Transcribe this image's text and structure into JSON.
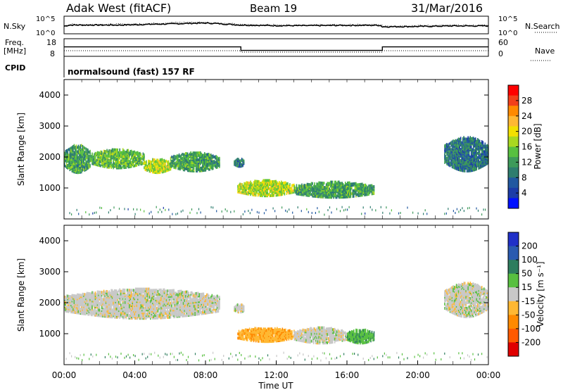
{
  "header": {
    "title": "Adak West (fitACF)",
    "beam": "Beam 19",
    "date": "31/Mar/2016"
  },
  "noise_panel": {
    "left_label": "N.Sky",
    "right_label": "N.Search",
    "left_ticks": [
      "10^5",
      "10^0"
    ],
    "right_ticks": [
      "10^5",
      "10^0"
    ]
  },
  "freq_panel": {
    "left_label_line1": "Freq.",
    "left_label_line2": "[MHz]",
    "left_ticks": [
      "18",
      "8"
    ],
    "right_label": "Nave",
    "right_ticks": [
      "60",
      "0"
    ]
  },
  "cpid": {
    "label": "CPID",
    "text": "normalsound (fast) 157 RF"
  },
  "xaxis": {
    "label": "Time UT",
    "ticks": [
      "00:00",
      "04:00",
      "08:00",
      "12:00",
      "16:00",
      "20:00",
      "00:00"
    ]
  },
  "power_colorbar": {
    "label": "Power [dB]",
    "ticks": [
      "28",
      "24",
      "20",
      "16",
      "12",
      "8",
      "4"
    ],
    "colors": [
      "#ff0000",
      "#f2401a",
      "#ff8a00",
      "#ffb833",
      "#f2e000",
      "#a8d820",
      "#58c040",
      "#3e9a5a",
      "#2e7d6e",
      "#2158a0",
      "#1c3ca8",
      "#0010ff"
    ]
  },
  "velocity_colorbar": {
    "label": "Velocity [m s⁻¹]",
    "ticks": [
      "200",
      "100",
      "50",
      "15",
      "-15",
      "-50",
      "-100",
      "-200"
    ],
    "colors": [
      "#2030c8",
      "#2a5ab0",
      "#2e7d5e",
      "#58c040",
      "#c8c8c8",
      "#ffb833",
      "#ff8a00",
      "#ff5a00",
      "#e00000"
    ]
  },
  "chart_data": [
    {
      "type": "line",
      "title": "Adak West (fitACF) Beam 19 31/Mar/2016",
      "panel": "noise",
      "xlabel": "Time UT",
      "x_hours": [
        0,
        0.3,
        1,
        3,
        4,
        5,
        6,
        7,
        8,
        8.5,
        10,
        12,
        14,
        16,
        17.9,
        18,
        20,
        22,
        24
      ],
      "series": [
        {
          "name": "N.Sky",
          "values_log10": [
            2.2,
            2.6,
            2.6,
            2.6,
            2.7,
            2.9,
            3.0,
            3.2,
            3.3,
            3.2,
            2.6,
            2.4,
            2.4,
            2.5,
            2.5,
            2.0,
            2.1,
            2.3,
            2.3
          ]
        },
        {
          "name": "N.Search",
          "values_log10": [
            2.4,
            2.8,
            2.8,
            2.9,
            3.0,
            3.2,
            3.4,
            3.6,
            3.6,
            3.4,
            2.8,
            2.6,
            2.6,
            2.7,
            2.7,
            2.3,
            2.4,
            2.5,
            2.5
          ]
        }
      ],
      "ylim_log10": [
        0,
        5
      ]
    },
    {
      "type": "line",
      "panel": "frequency",
      "xlabel": "Time UT",
      "series": [
        {
          "name": "Freq.",
          "x_hours": [
            0,
            10,
            10,
            18,
            18,
            24
          ],
          "values": [
            13.7,
            13.7,
            11.2,
            11.2,
            13.7,
            13.7
          ]
        },
        {
          "name": "Nave",
          "x_hours": [
            0,
            10,
            10,
            18,
            18,
            24
          ],
          "values": [
            18,
            18,
            12,
            12,
            18,
            18
          ]
        }
      ],
      "ylim_left": [
        8,
        18
      ],
      "ylim_right": [
        0,
        60
      ]
    },
    {
      "type": "heatmap",
      "panel": "power",
      "xlabel": "Time UT",
      "ylabel": "Slant Range [km]",
      "ylim": [
        0,
        4500
      ],
      "y_ticks": [
        1000,
        2000,
        3000,
        4000
      ],
      "regions": [
        {
          "x_start_h": 0,
          "x_end_h": 1.5,
          "range_low": 1450,
          "range_high": 2350,
          "power_dB": 12
        },
        {
          "x_start_h": 1.5,
          "x_end_h": 4.5,
          "range_low": 1600,
          "range_high": 2200,
          "power_dB": 14
        },
        {
          "x_start_h": 4.5,
          "x_end_h": 6.0,
          "range_low": 1450,
          "range_high": 1900,
          "power_dB": 18
        },
        {
          "x_start_h": 6.0,
          "x_end_h": 8.8,
          "range_low": 1500,
          "range_high": 2100,
          "power_dB": 12
        },
        {
          "x_start_h": 9.6,
          "x_end_h": 10.2,
          "range_low": 1650,
          "range_high": 1900,
          "power_dB": 8
        },
        {
          "x_start_h": 9.8,
          "x_end_h": 13,
          "range_low": 700,
          "range_high": 1200,
          "power_dB": 18
        },
        {
          "x_start_h": 13,
          "x_end_h": 17.5,
          "range_low": 650,
          "range_high": 1150,
          "power_dB": 12
        },
        {
          "x_start_h": 21.5,
          "x_end_h": 24,
          "range_low": 1500,
          "range_high": 2600,
          "power_dB": 8
        }
      ],
      "zlim_dB": [
        0,
        32
      ]
    },
    {
      "type": "heatmap",
      "panel": "velocity",
      "xlabel": "Time UT",
      "ylabel": "Slant Range [km]",
      "ylim": [
        0,
        4500
      ],
      "y_ticks": [
        1000,
        2000,
        3000,
        4000
      ],
      "regions": [
        {
          "x_start_h": 0,
          "x_end_h": 8.8,
          "range_low": 1450,
          "range_high": 2400,
          "velocity_ms": 0
        },
        {
          "x_start_h": 9.6,
          "x_end_h": 10.2,
          "range_low": 1650,
          "range_high": 1900,
          "velocity_ms": 0
        },
        {
          "x_start_h": 9.8,
          "x_end_h": 13,
          "range_low": 700,
          "range_high": 1150,
          "velocity_ms": -40
        },
        {
          "x_start_h": 13,
          "x_end_h": 16,
          "range_low": 650,
          "range_high": 1150,
          "velocity_ms": 0
        },
        {
          "x_start_h": 16,
          "x_end_h": 17.5,
          "range_low": 650,
          "range_high": 1100,
          "velocity_ms": 40
        },
        {
          "x_start_h": 21.5,
          "x_end_h": 24,
          "range_low": 1500,
          "range_high": 2600,
          "velocity_ms": 0
        }
      ],
      "zlim_ms": [
        -250,
        250
      ]
    }
  ]
}
